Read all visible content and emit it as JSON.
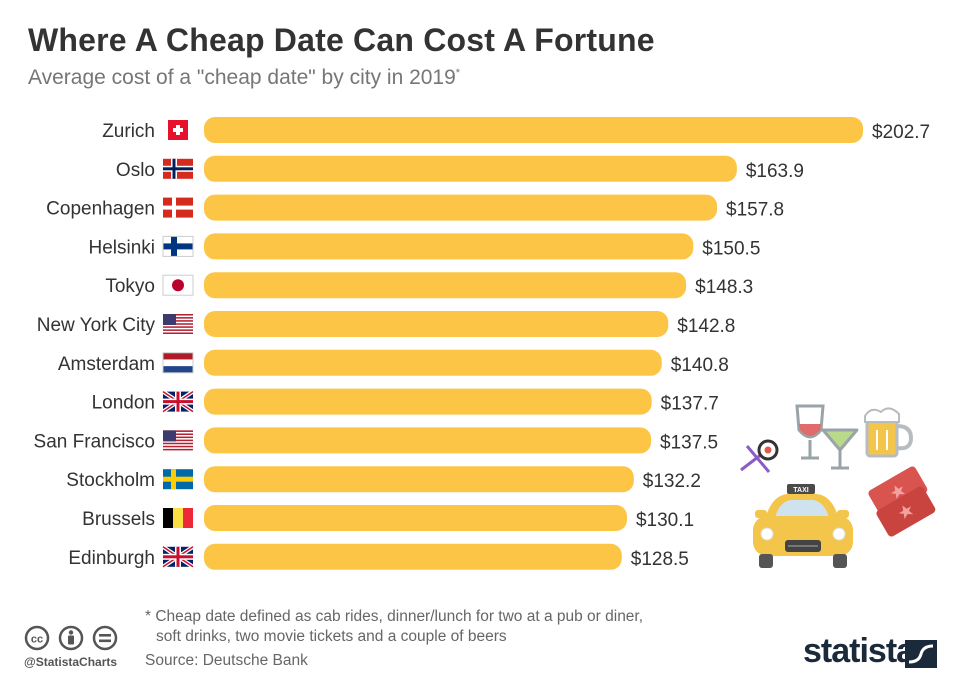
{
  "header": {
    "title": "Where A Cheap Date Can Cost A Fortune",
    "subtitle": "Average cost of a \"cheap date\" by city in 2019",
    "subtitle_mark": "*"
  },
  "chart_data": {
    "type": "bar",
    "orientation": "horizontal",
    "categories": [
      "Zurich",
      "Oslo",
      "Copenhagen",
      "Helsinki",
      "Tokyo",
      "New York City",
      "Amsterdam",
      "London",
      "San Francisco",
      "Stockholm",
      "Brussels",
      "Edinburgh"
    ],
    "values": [
      202.7,
      163.9,
      157.8,
      150.5,
      148.3,
      142.8,
      140.8,
      137.7,
      137.5,
      132.2,
      130.1,
      128.5
    ],
    "value_labels": [
      "$202.7",
      "$163.9",
      "$157.8",
      "$150.5",
      "$148.3",
      "$142.8",
      "$140.8",
      "$137.7",
      "$137.5",
      "$132.2",
      "$130.1",
      "$128.5"
    ],
    "flags": [
      "switzerland-flag",
      "norway-flag",
      "denmark-flag",
      "finland-flag",
      "japan-flag",
      "usa-flag",
      "netherlands-flag",
      "uk-flag",
      "usa-flag",
      "sweden-flag",
      "belgium-flag",
      "uk-flag"
    ],
    "bar_color": "#fcc546",
    "grid": false
  },
  "footer": {
    "footnote_line1": "* Cheap date defined as cab rides, dinner/lunch for two at a pub or diner,",
    "footnote_line2": "soft drinks, two movie tickets and a couple of beers",
    "source": "Source: Deutsche Bank",
    "handle": "@StatistaCharts",
    "brand": "statista"
  },
  "illustration": {
    "icons": [
      "wine-glass-icon",
      "cocktail-glass-icon",
      "beer-mug-icon",
      "sushi-chopsticks-icon",
      "taxi-icon",
      "movie-tickets-icon"
    ]
  }
}
